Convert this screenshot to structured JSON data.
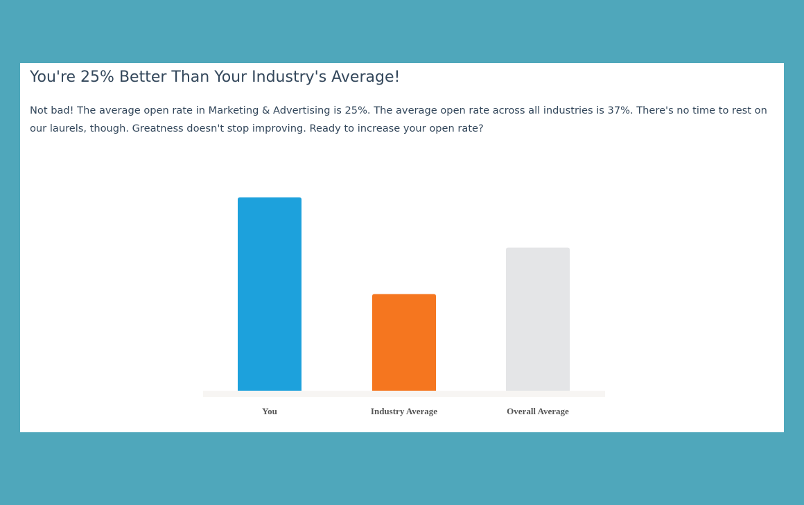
{
  "header": {
    "title": "You're 25% Better Than Your Industry's Average!",
    "text": "Not bad! The average open rate in Marketing & Advertising is 25%. The average open rate across all industries is 37%. There's no time to rest on our laurels, though. Greatness doesn't stop improving. Ready to increase your open rate?"
  },
  "chart_data": {
    "type": "bar",
    "categories": [
      "You",
      "Industry Average",
      "Overall Average"
    ],
    "values": [
      50,
      25,
      37
    ],
    "colors": [
      "#1da1dc",
      "#f5761f",
      "#e4e5e7"
    ]
  }
}
